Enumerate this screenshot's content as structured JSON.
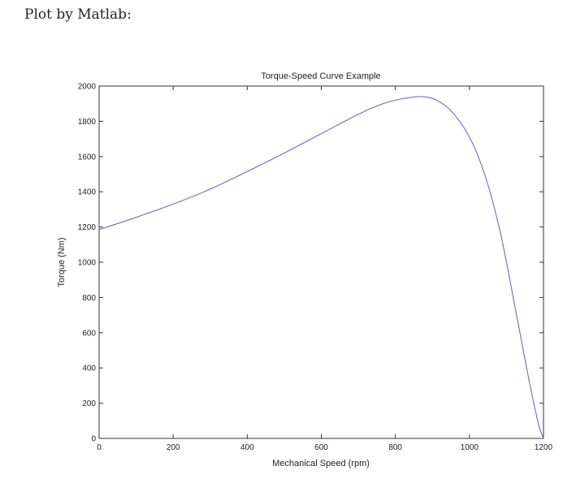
{
  "caption": "Plot by Matlab:",
  "chart_data": {
    "type": "line",
    "title": "Torque-Speed Curve Example",
    "xlabel": "Mechanical Speed (rpm)",
    "ylabel": "Torque (Nm)",
    "xlim": [
      0,
      1200
    ],
    "ylim": [
      0,
      2000
    ],
    "xticks": [
      0,
      200,
      400,
      600,
      800,
      1000,
      1200
    ],
    "yticks": [
      0,
      200,
      400,
      600,
      800,
      1000,
      1200,
      1400,
      1600,
      1800,
      2000
    ],
    "grid": false,
    "series": [
      {
        "name": "torque",
        "color": "#6c6cc0",
        "x": [
          0,
          100,
          200,
          300,
          400,
          500,
          600,
          700,
          760,
          800,
          840,
          860,
          880,
          900,
          920,
          950,
          980,
          1000,
          1020,
          1050,
          1080,
          1100,
          1120,
          1140,
          1160,
          1180,
          1190,
          1200
        ],
        "y": [
          1185,
          1255,
          1330,
          1415,
          1515,
          1620,
          1730,
          1840,
          1895,
          1920,
          1935,
          1940,
          1938,
          1930,
          1910,
          1860,
          1780,
          1710,
          1620,
          1440,
          1200,
          1000,
          780,
          560,
          340,
          140,
          55,
          0
        ]
      }
    ]
  }
}
